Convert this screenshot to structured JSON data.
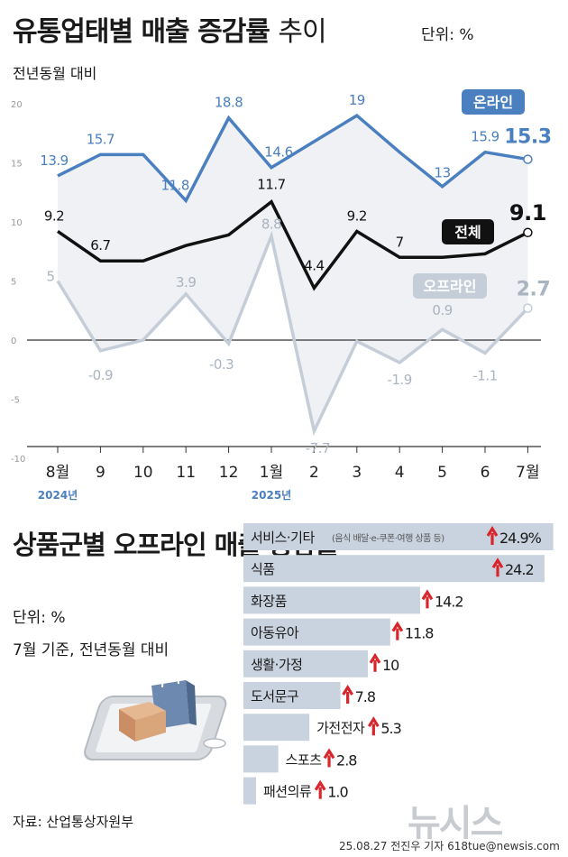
{
  "title": {
    "bold": "유통업태별 매출 증감률",
    "light": "추이"
  },
  "unit_label": "단위: %",
  "basis_label": "전년동월 대비",
  "chart_data": [
    {
      "type": "line",
      "x": [
        "8월",
        "9",
        "10",
        "11",
        "12",
        "1월",
        "2",
        "3",
        "4",
        "5",
        "6",
        "7월"
      ],
      "year_labels": [
        "2024년",
        "2025년"
      ],
      "yticks": [
        20,
        15,
        10,
        5,
        0,
        -5,
        -10
      ],
      "ylim": [
        -10,
        20
      ],
      "grid": false,
      "series": [
        {
          "name": "온라인",
          "color": "#4a7fc0",
          "values": [
            13.9,
            15.7,
            null,
            11.8,
            18.8,
            14.6,
            null,
            19,
            null,
            13,
            15.9,
            15.3
          ]
        },
        {
          "name": "전체",
          "color": "#111111",
          "values": [
            9.2,
            6.7,
            null,
            null,
            null,
            11.7,
            4.4,
            9.2,
            7,
            null,
            null,
            9.1
          ]
        },
        {
          "name": "오프라인",
          "color": "#c5ced8",
          "values": [
            5,
            -0.9,
            null,
            3.9,
            -0.3,
            8.8,
            -7.7,
            null,
            -1.9,
            0.9,
            -1.1,
            2.7
          ]
        }
      ]
    },
    {
      "type": "bar",
      "title": "상품군별 오프라인 매출 증감률",
      "unit": "단위: %",
      "basis": "7월 기준, 전년동월 대비",
      "categories": [
        "서비스·기타",
        "식품",
        "화장품",
        "아동유아",
        "생활·가정",
        "도서문구",
        "가전전자",
        "스포츠",
        "패션의류"
      ],
      "category_note": "(음식 배달·e-쿠폰·여행 상품 등)",
      "values": [
        24.9,
        24.2,
        14.2,
        11.8,
        10,
        7.8,
        5.3,
        2.8,
        1.0
      ],
      "value_labels": [
        "24.9%",
        "24.2",
        "14.2",
        "11.8",
        "10",
        "7.8",
        "5.3",
        "2.8",
        "1.0"
      ],
      "bar_color": "#c9d3df",
      "arrow_color": "#d9262c"
    }
  ],
  "source_label": "자료: 산업통상자원부",
  "logo_text": "뉴시스",
  "credit": "25.08.27 전진우 기자 618tue@newsis.com"
}
